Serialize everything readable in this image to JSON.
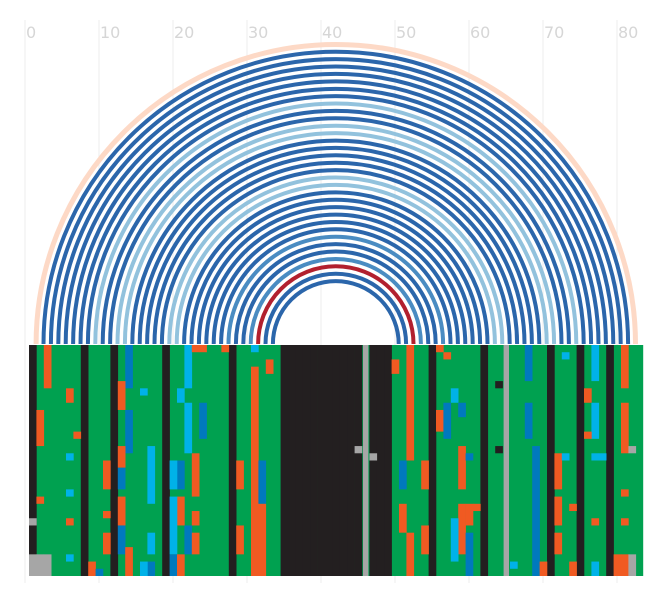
{
  "chart_data": {
    "type": "arc",
    "title": "",
    "xlabel": "",
    "ylabel": "",
    "x_axis": {
      "range": [
        0,
        83
      ],
      "position": "top",
      "ticks": [
        0,
        10,
        20,
        30,
        40,
        50,
        60,
        70,
        80
      ],
      "tick_labels": [
        "0",
        "10",
        "20",
        "30",
        "40",
        "50",
        "60",
        "70",
        "80"
      ]
    },
    "grid": true,
    "arcs": {
      "description": "nested arcs connecting paired positions (start, end) in column units",
      "colors": {
        "outer_halo": "#fdd9c6",
        "dark": "#2b66ab",
        "light": "#92c2dd",
        "mid": "#4a8cc2",
        "highlight": "#b2202e"
      },
      "pairs": [
        {
          "start": 1,
          "end": 82,
          "color": "outer_halo"
        },
        {
          "start": 2,
          "end": 81,
          "color": "dark"
        },
        {
          "start": 3,
          "end": 80,
          "color": "dark"
        },
        {
          "start": 4,
          "end": 79,
          "color": "dark"
        },
        {
          "start": 5,
          "end": 78,
          "color": "dark"
        },
        {
          "start": 6,
          "end": 77,
          "color": "dark"
        },
        {
          "start": 7,
          "end": 76,
          "color": "dark"
        },
        {
          "start": 8,
          "end": 75,
          "color": "dark"
        },
        {
          "start": 9,
          "end": 74,
          "color": "light"
        },
        {
          "start": 10,
          "end": 73,
          "color": "dark"
        },
        {
          "start": 11,
          "end": 72,
          "color": "dark"
        },
        {
          "start": 12,
          "end": 71,
          "color": "light"
        },
        {
          "start": 13,
          "end": 70,
          "color": "light"
        },
        {
          "start": 14,
          "end": 69,
          "color": "dark"
        },
        {
          "start": 15,
          "end": 68,
          "color": "dark"
        },
        {
          "start": 16,
          "end": 67,
          "color": "dark"
        },
        {
          "start": 17,
          "end": 66,
          "color": "dark"
        },
        {
          "start": 18,
          "end": 65,
          "color": "dark"
        },
        {
          "start": 19,
          "end": 64,
          "color": "light"
        },
        {
          "start": 20,
          "end": 63,
          "color": "light"
        },
        {
          "start": 21,
          "end": 62,
          "color": "dark"
        },
        {
          "start": 22,
          "end": 61,
          "color": "dark"
        },
        {
          "start": 23,
          "end": 60,
          "color": "dark"
        },
        {
          "start": 24,
          "end": 59,
          "color": "dark"
        },
        {
          "start": 25,
          "end": 58,
          "color": "dark"
        },
        {
          "start": 26,
          "end": 57,
          "color": "dark"
        },
        {
          "start": 27,
          "end": 56,
          "color": "mid"
        },
        {
          "start": 28,
          "end": 55,
          "color": "dark"
        },
        {
          "start": 29,
          "end": 54,
          "color": "dark"
        },
        {
          "start": 30,
          "end": 53,
          "color": "mid"
        },
        {
          "start": 31,
          "end": 52,
          "color": "highlight"
        },
        {
          "start": 32,
          "end": 51,
          "color": "dark"
        },
        {
          "start": 33,
          "end": 50,
          "color": "dark"
        }
      ]
    },
    "alignment": {
      "description": "per-column / per-row category grid beneath the arcs",
      "rows": 32,
      "columns": 83,
      "categories": {
        "background": "#00a150",
        "A": "#f05a22",
        "B": "#0079be",
        "C": "#00b2e8",
        "gap": "#231f20",
        "N": "#a6a6a6"
      },
      "gap_columns": [
        0,
        7,
        11,
        18,
        27,
        34,
        35,
        36,
        37,
        38,
        39,
        40,
        41,
        42,
        43,
        44,
        46,
        47,
        48,
        54,
        61,
        70,
        74,
        78
      ],
      "N_columns": [
        45,
        64
      ],
      "column_runs": [
        {
          "col": 2,
          "rows": [
            0,
            6
          ],
          "cat": "A"
        },
        {
          "col": 5,
          "rows": [
            6,
            8
          ],
          "cat": "A"
        },
        {
          "col": 1,
          "rows": [
            9,
            14
          ],
          "cat": "A"
        },
        {
          "col": 6,
          "rows": [
            12,
            13
          ],
          "cat": "A"
        },
        {
          "col": 5,
          "rows": [
            15,
            16
          ],
          "cat": "C"
        },
        {
          "col": 1,
          "rows": [
            21,
            22
          ],
          "cat": "A"
        },
        {
          "col": 5,
          "rows": [
            20,
            21
          ],
          "cat": "C"
        },
        {
          "col": 0,
          "rows": [
            24,
            25
          ],
          "cat": "N"
        },
        {
          "col": 5,
          "rows": [
            24,
            25
          ],
          "cat": "A"
        },
        {
          "col": 0,
          "rows": [
            29,
            32
          ],
          "cat": "N"
        },
        {
          "col": 1,
          "rows": [
            29,
            32
          ],
          "cat": "N"
        },
        {
          "col": 2,
          "rows": [
            29,
            32
          ],
          "cat": "N"
        },
        {
          "col": 5,
          "rows": [
            29,
            30
          ],
          "cat": "C"
        },
        {
          "col": 8,
          "rows": [
            30,
            32
          ],
          "cat": "A"
        },
        {
          "col": 9,
          "rows": [
            31,
            32
          ],
          "cat": "B"
        },
        {
          "col": 13,
          "rows": [
            0,
            6
          ],
          "cat": "B"
        },
        {
          "col": 12,
          "rows": [
            5,
            9
          ],
          "cat": "A"
        },
        {
          "col": 15,
          "rows": [
            6,
            7
          ],
          "cat": "C"
        },
        {
          "col": 13,
          "rows": [
            9,
            15
          ],
          "cat": "B"
        },
        {
          "col": 12,
          "rows": [
            14,
            17
          ],
          "cat": "A"
        },
        {
          "col": 10,
          "rows": [
            16,
            20
          ],
          "cat": "A"
        },
        {
          "col": 12,
          "rows": [
            17,
            20
          ],
          "cat": "B"
        },
        {
          "col": 16,
          "rows": [
            14,
            22
          ],
          "cat": "C"
        },
        {
          "col": 12,
          "rows": [
            21,
            25
          ],
          "cat": "A"
        },
        {
          "col": 10,
          "rows": [
            23,
            24
          ],
          "cat": "A"
        },
        {
          "col": 12,
          "rows": [
            25,
            29
          ],
          "cat": "B"
        },
        {
          "col": 10,
          "rows": [
            26,
            29
          ],
          "cat": "A"
        },
        {
          "col": 16,
          "rows": [
            26,
            29
          ],
          "cat": "C"
        },
        {
          "col": 13,
          "rows": [
            28,
            32
          ],
          "cat": "A"
        },
        {
          "col": 16,
          "rows": [
            30,
            32
          ],
          "cat": "B"
        },
        {
          "col": 15,
          "rows": [
            30,
            32
          ],
          "cat": "C"
        },
        {
          "col": 21,
          "rows": [
            0,
            6
          ],
          "cat": "C"
        },
        {
          "col": 20,
          "rows": [
            6,
            8
          ],
          "cat": "C"
        },
        {
          "col": 22,
          "rows": [
            0,
            1
          ],
          "cat": "A"
        },
        {
          "col": 23,
          "rows": [
            0,
            1
          ],
          "cat": "A"
        },
        {
          "col": 23,
          "rows": [
            8,
            13
          ],
          "cat": "B"
        },
        {
          "col": 21,
          "rows": [
            8,
            15
          ],
          "cat": "C"
        },
        {
          "col": 20,
          "rows": [
            16,
            20
          ],
          "cat": "B"
        },
        {
          "col": 19,
          "rows": [
            16,
            20
          ],
          "cat": "C"
        },
        {
          "col": 22,
          "rows": [
            15,
            21
          ],
          "cat": "A"
        },
        {
          "col": 20,
          "rows": [
            21,
            25
          ],
          "cat": "A"
        },
        {
          "col": 19,
          "rows": [
            21,
            29
          ],
          "cat": "C"
        },
        {
          "col": 22,
          "rows": [
            23,
            25
          ],
          "cat": "A"
        },
        {
          "col": 21,
          "rows": [
            25,
            29
          ],
          "cat": "B"
        },
        {
          "col": 22,
          "rows": [
            26,
            29
          ],
          "cat": "A"
        },
        {
          "col": 19,
          "rows": [
            29,
            32
          ],
          "cat": "B"
        },
        {
          "col": 20,
          "rows": [
            29,
            32
          ],
          "cat": "A"
        },
        {
          "col": 26,
          "rows": [
            0,
            1
          ],
          "cat": "A"
        },
        {
          "col": 30,
          "rows": [
            0,
            1
          ],
          "cat": "C"
        },
        {
          "col": 32,
          "rows": [
            2,
            4
          ],
          "cat": "A"
        },
        {
          "col": 30,
          "rows": [
            3,
            32
          ],
          "cat": "A"
        },
        {
          "col": 28,
          "rows": [
            16,
            20
          ],
          "cat": "A"
        },
        {
          "col": 31,
          "rows": [
            16,
            22
          ],
          "cat": "B"
        },
        {
          "col": 28,
          "rows": [
            25,
            29
          ],
          "cat": "A"
        },
        {
          "col": 31,
          "rows": [
            22,
            32
          ],
          "cat": "A"
        },
        {
          "col": 49,
          "rows": [
            2,
            4
          ],
          "cat": "A"
        },
        {
          "col": 51,
          "rows": [
            0,
            16
          ],
          "cat": "A"
        },
        {
          "col": 50,
          "rows": [
            16,
            20
          ],
          "cat": "B"
        },
        {
          "col": 53,
          "rows": [
            16,
            20
          ],
          "cat": "A"
        },
        {
          "col": 50,
          "rows": [
            22,
            26
          ],
          "cat": "A"
        },
        {
          "col": 51,
          "rows": [
            26,
            32
          ],
          "cat": "A"
        },
        {
          "col": 53,
          "rows": [
            25,
            29
          ],
          "cat": "A"
        },
        {
          "col": 55,
          "rows": [
            0,
            1
          ],
          "cat": "A"
        },
        {
          "col": 56,
          "rows": [
            1,
            2
          ],
          "cat": "A"
        },
        {
          "col": 55,
          "rows": [
            9,
            12
          ],
          "cat": "A"
        },
        {
          "col": 56,
          "rows": [
            8,
            13
          ],
          "cat": "B"
        },
        {
          "col": 57,
          "rows": [
            6,
            8
          ],
          "cat": "C"
        },
        {
          "col": 58,
          "rows": [
            8,
            10
          ],
          "cat": "B"
        },
        {
          "col": 58,
          "rows": [
            14,
            20
          ],
          "cat": "A"
        },
        {
          "col": 59,
          "rows": [
            15,
            16
          ],
          "cat": "B"
        },
        {
          "col": 58,
          "rows": [
            22,
            29
          ],
          "cat": "A"
        },
        {
          "col": 57,
          "rows": [
            24,
            30
          ],
          "cat": "C"
        },
        {
          "col": 59,
          "rows": [
            22,
            25
          ],
          "cat": "A"
        },
        {
          "col": 60,
          "rows": [
            22,
            23
          ],
          "cat": "A"
        },
        {
          "col": 59,
          "rows": [
            26,
            32
          ],
          "cat": "B"
        },
        {
          "col": 63,
          "rows": [
            5,
            6
          ],
          "cat": "gap"
        },
        {
          "col": 63,
          "rows": [
            14,
            15
          ],
          "cat": "gap"
        },
        {
          "col": 67,
          "rows": [
            0,
            5
          ],
          "cat": "B"
        },
        {
          "col": 67,
          "rows": [
            8,
            13
          ],
          "cat": "B"
        },
        {
          "col": 68,
          "rows": [
            14,
            32
          ],
          "cat": "B"
        },
        {
          "col": 65,
          "rows": [
            30,
            31
          ],
          "cat": "C"
        },
        {
          "col": 69,
          "rows": [
            30,
            32
          ],
          "cat": "A"
        },
        {
          "col": 71,
          "rows": [
            15,
            20
          ],
          "cat": "A"
        },
        {
          "col": 72,
          "rows": [
            1,
            2
          ],
          "cat": "C"
        },
        {
          "col": 71,
          "rows": [
            21,
            25
          ],
          "cat": "A"
        },
        {
          "col": 72,
          "rows": [
            15,
            16
          ],
          "cat": "C"
        },
        {
          "col": 73,
          "rows": [
            22,
            23
          ],
          "cat": "A"
        },
        {
          "col": 71,
          "rows": [
            26,
            29
          ],
          "cat": "A"
        },
        {
          "col": 73,
          "rows": [
            30,
            32
          ],
          "cat": "A"
        },
        {
          "col": 76,
          "rows": [
            0,
            5
          ],
          "cat": "C"
        },
        {
          "col": 75,
          "rows": [
            6,
            8
          ],
          "cat": "A"
        },
        {
          "col": 76,
          "rows": [
            8,
            13
          ],
          "cat": "C"
        },
        {
          "col": 75,
          "rows": [
            12,
            13
          ],
          "cat": "A"
        },
        {
          "col": 76,
          "rows": [
            15,
            16
          ],
          "cat": "C"
        },
        {
          "col": 77,
          "rows": [
            15,
            16
          ],
          "cat": "C"
        },
        {
          "col": 76,
          "rows": [
            24,
            25
          ],
          "cat": "A"
        },
        {
          "col": 76,
          "rows": [
            30,
            32
          ],
          "cat": "C"
        },
        {
          "col": 80,
          "rows": [
            0,
            6
          ],
          "cat": "A"
        },
        {
          "col": 80,
          "rows": [
            8,
            15
          ],
          "cat": "A"
        },
        {
          "col": 80,
          "rows": [
            20,
            21
          ],
          "cat": "A"
        },
        {
          "col": 80,
          "rows": [
            24,
            25
          ],
          "cat": "A"
        },
        {
          "col": 79,
          "rows": [
            29,
            32
          ],
          "cat": "A"
        },
        {
          "col": 80,
          "rows": [
            29,
            32
          ],
          "cat": "A"
        },
        {
          "col": 81,
          "rows": [
            14,
            15
          ],
          "cat": "N"
        },
        {
          "col": 81,
          "rows": [
            29,
            32
          ],
          "cat": "N"
        },
        {
          "col": 44,
          "rows": [
            14,
            15
          ],
          "cat": "N"
        },
        {
          "col": 46,
          "rows": [
            15,
            16
          ],
          "cat": "N"
        }
      ]
    }
  }
}
